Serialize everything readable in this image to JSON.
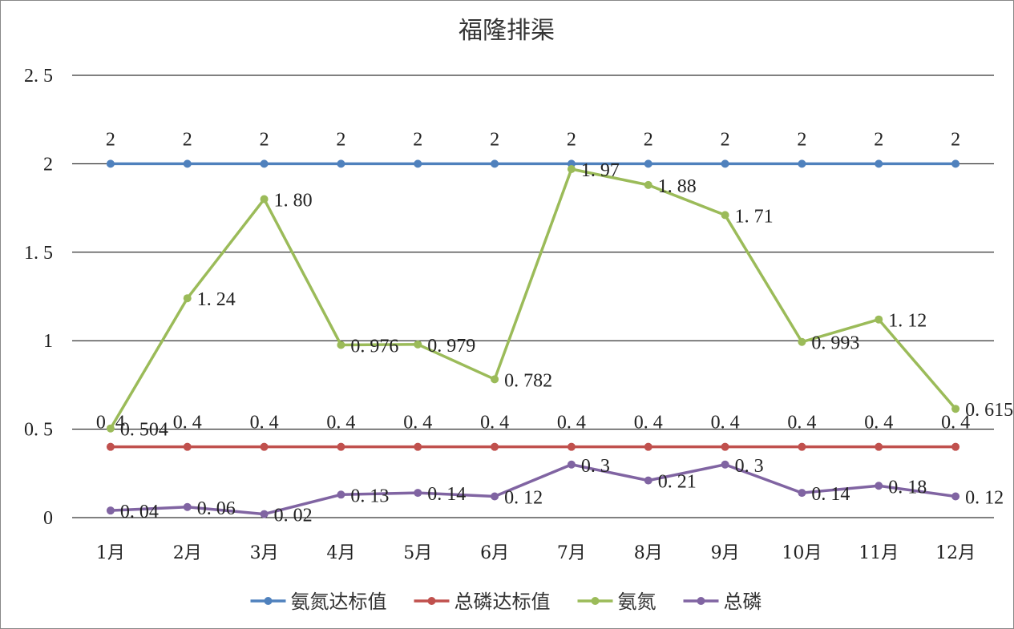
{
  "chart_data": {
    "type": "line",
    "title": "福隆排渠",
    "categories": [
      "1月",
      "2月",
      "3月",
      "4月",
      "5月",
      "6月",
      "7月",
      "8月",
      "9月",
      "10月",
      "11月",
      "12月"
    ],
    "y_ticks": [
      "0",
      "0. 5",
      "1",
      "1. 5",
      "2",
      "2. 5"
    ],
    "ylim": [
      0,
      2.5
    ],
    "grid": true,
    "legend_position": "bottom",
    "series": [
      {
        "name": "氨氮达标值",
        "color": "#4F81BD",
        "values": [
          2,
          2,
          2,
          2,
          2,
          2,
          2,
          2,
          2,
          2,
          2,
          2
        ],
        "labels": [
          "2",
          "2",
          "2",
          "2",
          "2",
          "2",
          "2",
          "2",
          "2",
          "2",
          "2",
          "2"
        ],
        "label_position": "above"
      },
      {
        "name": "总磷达标值",
        "color": "#C0504D",
        "values": [
          0.4,
          0.4,
          0.4,
          0.4,
          0.4,
          0.4,
          0.4,
          0.4,
          0.4,
          0.4,
          0.4,
          0.4
        ],
        "labels": [
          "0. 4",
          "0. 4",
          "0. 4",
          "0. 4",
          "0. 4",
          "0. 4",
          "0. 4",
          "0. 4",
          "0. 4",
          "0. 4",
          "0. 4",
          "0. 4"
        ],
        "label_position": "above"
      },
      {
        "name": "氨氮",
        "color": "#9BBB59",
        "values": [
          0.504,
          1.24,
          1.8,
          0.976,
          0.979,
          0.782,
          1.97,
          1.88,
          1.71,
          0.993,
          1.12,
          0.615
        ],
        "labels": [
          "0. 504",
          "1. 24",
          "1. 80",
          "0. 976",
          "0. 979",
          "0. 782",
          "1. 97",
          "1. 88",
          "1. 71",
          "0. 993",
          "1. 12",
          "0. 615"
        ],
        "label_position": "right"
      },
      {
        "name": "总磷",
        "color": "#8064A2",
        "values": [
          0.04,
          0.06,
          0.02,
          0.13,
          0.14,
          0.12,
          0.3,
          0.21,
          0.3,
          0.14,
          0.18,
          0.12
        ],
        "labels": [
          "0. 04",
          "0. 06",
          "0. 02",
          "0. 13",
          "0. 14",
          "0. 12",
          "0. 3",
          "0. 21",
          "0. 3",
          "0. 14",
          "0. 18",
          "0. 12"
        ],
        "label_position": "right"
      }
    ]
  }
}
